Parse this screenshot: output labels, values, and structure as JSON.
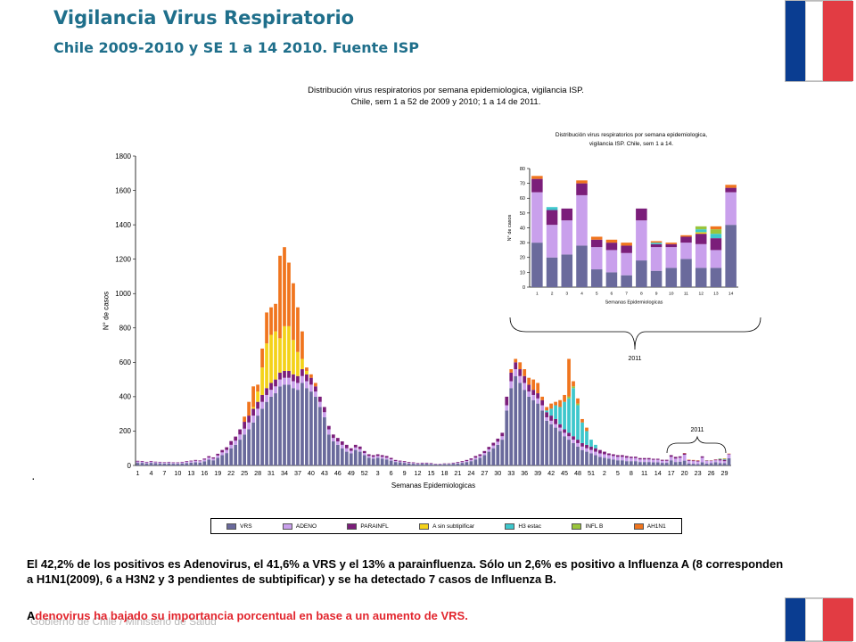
{
  "header": {
    "title": "Vigilancia Virus Respiratorio",
    "subtitle": "Chile 2009-2010  y SE 1 a 14 2010. Fuente ISP"
  },
  "colors": {
    "VRS": "#6a6a9c",
    "ADENO": "#c9a0ec",
    "PARAINFL": "#7b1e7a",
    "Asin": "#f4d21a",
    "H3": "#3ec7cc",
    "INFLB": "#9ac53c",
    "AH1N1": "#f0751e"
  },
  "chart_data": [
    {
      "type": "bar",
      "title": "Distribución virus respiratorios por semana epidemiologica, vigilancia ISP.",
      "title_line2": "Chile, sem 1 a 52 de 2009 y 2010; 1 a 14 de 2011.",
      "xlabel": "Semanas Epidemiologicas",
      "ylabel": "N° de casos",
      "ylim": [
        0,
        1800
      ],
      "yticks": [
        "0",
        "200",
        "400",
        "600",
        "800",
        "1000",
        "1200",
        "1400",
        "1600",
        "1800"
      ],
      "stacked": true,
      "series_names": [
        "VRS",
        "ADENO",
        "PARAINFL",
        "A sin subtipificar",
        "H3 estac",
        "INFL B",
        "AH1N1"
      ],
      "annotation": "2011",
      "note": "·",
      "values": [
        [
          15,
          8,
          4,
          0,
          0,
          0,
          0
        ],
        [
          15,
          7,
          4,
          0,
          0,
          0,
          0
        ],
        [
          12,
          6,
          3,
          0,
          0,
          0,
          0
        ],
        [
          15,
          7,
          4,
          0,
          0,
          0,
          0
        ],
        [
          13,
          6,
          3,
          0,
          0,
          0,
          0
        ],
        [
          12,
          6,
          3,
          0,
          0,
          0,
          0
        ],
        [
          11,
          5,
          3,
          0,
          0,
          0,
          0
        ],
        [
          12,
          6,
          3,
          0,
          0,
          0,
          0
        ],
        [
          10,
          5,
          3,
          0,
          0,
          0,
          0
        ],
        [
          10,
          5,
          3,
          0,
          0,
          0,
          0
        ],
        [
          12,
          6,
          3,
          0,
          0,
          0,
          0
        ],
        [
          14,
          7,
          4,
          0,
          0,
          0,
          0
        ],
        [
          16,
          8,
          4,
          0,
          0,
          0,
          0
        ],
        [
          18,
          9,
          5,
          0,
          0,
          0,
          0
        ],
        [
          17,
          8,
          4,
          0,
          0,
          0,
          0
        ],
        [
          24,
          10,
          6,
          0,
          0,
          0,
          0
        ],
        [
          34,
          12,
          8,
          0,
          0,
          0,
          0
        ],
        [
          30,
          10,
          7,
          0,
          0,
          0,
          0
        ],
        [
          44,
          14,
          10,
          0,
          0,
          0,
          0
        ],
        [
          60,
          16,
          14,
          0,
          0,
          0,
          0
        ],
        [
          72,
          18,
          16,
          0,
          0,
          0,
          0
        ],
        [
          100,
          20,
          22,
          0,
          0,
          0,
          0
        ],
        [
          120,
          24,
          24,
          0,
          0,
          0,
          0
        ],
        [
          150,
          30,
          30,
          0,
          0,
          0,
          0
        ],
        [
          180,
          34,
          40,
          0,
          0,
          0,
          30
        ],
        [
          210,
          40,
          40,
          0,
          0,
          0,
          80
        ],
        [
          250,
          40,
          40,
          10,
          0,
          0,
          120
        ],
        [
          290,
          40,
          40,
          60,
          0,
          0,
          40
        ],
        [
          330,
          40,
          40,
          160,
          0,
          0,
          110
        ],
        [
          370,
          40,
          40,
          260,
          0,
          0,
          180
        ],
        [
          400,
          40,
          40,
          280,
          0,
          0,
          160
        ],
        [
          420,
          40,
          40,
          280,
          0,
          0,
          160
        ],
        [
          460,
          40,
          40,
          200,
          0,
          0,
          480
        ],
        [
          470,
          40,
          40,
          260,
          0,
          0,
          460
        ],
        [
          470,
          40,
          40,
          260,
          0,
          0,
          370
        ],
        [
          450,
          40,
          40,
          200,
          0,
          0,
          330
        ],
        [
          440,
          40,
          40,
          140,
          0,
          0,
          260
        ],
        [
          480,
          40,
          40,
          60,
          0,
          0,
          160
        ],
        [
          450,
          40,
          40,
          20,
          0,
          0,
          20
        ],
        [
          430,
          40,
          40,
          0,
          0,
          0,
          20
        ],
        [
          400,
          30,
          30,
          0,
          0,
          0,
          20
        ],
        [
          340,
          30,
          30,
          0,
          0,
          0,
          0
        ],
        [
          280,
          30,
          30,
          0,
          0,
          0,
          0
        ],
        [
          180,
          30,
          20,
          0,
          0,
          0,
          0
        ],
        [
          140,
          20,
          20,
          0,
          0,
          0,
          0
        ],
        [
          120,
          20,
          20,
          0,
          0,
          0,
          0
        ],
        [
          100,
          20,
          20,
          0,
          0,
          0,
          0
        ],
        [
          80,
          20,
          20,
          0,
          0,
          0,
          0
        ],
        [
          70,
          15,
          15,
          0,
          0,
          0,
          0
        ],
        [
          90,
          15,
          15,
          0,
          0,
          0,
          0
        ],
        [
          80,
          15,
          15,
          0,
          0,
          0,
          0
        ],
        [
          60,
          12,
          12,
          0,
          0,
          0,
          0
        ],
        [
          45,
          10,
          10,
          0,
          0,
          0,
          0
        ],
        [
          40,
          10,
          10,
          0,
          0,
          0,
          0
        ],
        [
          45,
          10,
          10,
          0,
          0,
          0,
          0
        ],
        [
          40,
          10,
          10,
          0,
          0,
          0,
          0
        ],
        [
          35,
          10,
          10,
          0,
          0,
          0,
          0
        ],
        [
          28,
          8,
          8,
          0,
          0,
          0,
          0
        ],
        [
          20,
          6,
          6,
          0,
          0,
          0,
          0
        ],
        [
          18,
          5,
          5,
          0,
          0,
          0,
          0
        ],
        [
          15,
          5,
          5,
          0,
          0,
          0,
          0
        ],
        [
          12,
          4,
          4,
          0,
          0,
          0,
          0
        ],
        [
          10,
          4,
          4,
          0,
          0,
          0,
          0
        ],
        [
          8,
          3,
          3,
          0,
          0,
          0,
          0
        ],
        [
          10,
          3,
          3,
          0,
          0,
          0,
          0
        ],
        [
          10,
          3,
          3,
          0,
          0,
          0,
          0
        ],
        [
          8,
          3,
          3,
          0,
          0,
          0,
          0
        ],
        [
          6,
          2,
          2,
          0,
          0,
          0,
          0
        ],
        [
          6,
          2,
          2,
          0,
          0,
          0,
          0
        ],
        [
          8,
          2,
          2,
          0,
          0,
          0,
          0
        ],
        [
          8,
          2,
          2,
          0,
          0,
          0,
          0
        ],
        [
          10,
          3,
          3,
          0,
          0,
          0,
          0
        ],
        [
          12,
          4,
          4,
          0,
          0,
          0,
          0
        ],
        [
          15,
          5,
          5,
          0,
          0,
          0,
          0
        ],
        [
          20,
          6,
          6,
          0,
          0,
          0,
          0
        ],
        [
          25,
          8,
          8,
          0,
          0,
          0,
          0
        ],
        [
          35,
          10,
          10,
          0,
          0,
          0,
          0
        ],
        [
          45,
          10,
          10,
          0,
          0,
          0,
          0
        ],
        [
          60,
          12,
          12,
          0,
          0,
          0,
          0
        ],
        [
          80,
          14,
          14,
          0,
          0,
          0,
          0
        ],
        [
          100,
          16,
          16,
          0,
          0,
          0,
          0
        ],
        [
          120,
          18,
          18,
          0,
          0,
          0,
          0
        ],
        [
          150,
          20,
          20,
          0,
          0,
          0,
          0
        ],
        [
          320,
          30,
          50,
          0,
          0,
          0,
          0
        ],
        [
          450,
          40,
          50,
          0,
          0,
          0,
          20
        ],
        [
          520,
          40,
          40,
          0,
          0,
          0,
          20
        ],
        [
          480,
          40,
          40,
          0,
          0,
          0,
          40
        ],
        [
          440,
          40,
          40,
          0,
          0,
          0,
          40
        ],
        [
          400,
          30,
          40,
          0,
          0,
          0,
          40
        ],
        [
          380,
          30,
          30,
          0,
          0,
          0,
          60
        ],
        [
          360,
          30,
          30,
          0,
          0,
          0,
          60
        ],
        [
          320,
          30,
          30,
          0,
          0,
          0,
          20
        ],
        [
          260,
          20,
          30,
          0,
          10,
          0,
          20
        ],
        [
          240,
          20,
          30,
          0,
          40,
          0,
          30
        ],
        [
          220,
          20,
          30,
          0,
          80,
          0,
          20
        ],
        [
          200,
          20,
          20,
          0,
          100,
          0,
          40
        ],
        [
          170,
          20,
          20,
          0,
          160,
          0,
          40
        ],
        [
          150,
          20,
          20,
          0,
          200,
          10,
          220
        ],
        [
          130,
          20,
          20,
          0,
          280,
          10,
          30
        ],
        [
          110,
          20,
          20,
          0,
          200,
          10,
          30
        ],
        [
          90,
          20,
          20,
          0,
          120,
          0,
          20
        ],
        [
          80,
          20,
          20,
          0,
          80,
          0,
          20
        ],
        [
          70,
          20,
          20,
          0,
          40,
          0,
          0
        ],
        [
          60,
          20,
          20,
          0,
          20,
          0,
          0
        ],
        [
          50,
          20,
          20,
          0,
          0,
          0,
          0
        ],
        [
          45,
          20,
          15,
          0,
          0,
          0,
          0
        ],
        [
          40,
          20,
          10,
          0,
          0,
          0,
          0
        ],
        [
          35,
          20,
          10,
          0,
          0,
          0,
          0
        ],
        [
          30,
          20,
          10,
          0,
          0,
          0,
          0
        ],
        [
          30,
          20,
          10,
          0,
          0,
          0,
          0
        ],
        [
          25,
          20,
          10,
          0,
          0,
          0,
          0
        ],
        [
          25,
          18,
          8,
          0,
          0,
          0,
          0
        ],
        [
          25,
          18,
          8,
          0,
          0,
          0,
          0
        ],
        [
          20,
          15,
          8,
          0,
          0,
          0,
          0
        ],
        [
          20,
          15,
          8,
          0,
          0,
          0,
          0
        ],
        [
          20,
          15,
          8,
          0,
          0,
          0,
          0
        ],
        [
          18,
          15,
          6,
          0,
          0,
          0,
          0
        ],
        [
          18,
          15,
          6,
          0,
          0,
          0,
          0
        ],
        [
          15,
          12,
          6,
          0,
          0,
          0,
          0
        ],
        [
          15,
          12,
          6,
          0,
          0,
          0,
          0
        ],
        [
          30,
          20,
          10,
          0,
          0,
          0,
          0
        ],
        [
          20,
          20,
          10,
          0,
          0,
          0,
          0
        ],
        [
          22,
          23,
          8,
          0,
          0,
          0,
          0
        ],
        [
          28,
          34,
          8,
          0,
          0,
          0,
          2
        ],
        [
          12,
          15,
          5,
          0,
          0,
          0,
          2
        ],
        [
          10,
          15,
          5,
          0,
          0,
          0,
          2
        ],
        [
          8,
          15,
          5,
          0,
          0,
          0,
          2
        ],
        [
          18,
          27,
          8,
          0,
          0,
          0,
          0
        ],
        [
          11,
          16,
          2,
          0,
          1,
          0,
          1
        ],
        [
          13,
          14,
          2,
          0,
          0,
          0,
          1
        ],
        [
          19,
          11,
          4,
          0,
          0,
          0,
          1
        ],
        [
          13,
          16,
          7,
          1,
          2,
          2,
          0
        ],
        [
          13,
          12,
          8,
          0,
          3,
          3,
          2
        ],
        [
          42,
          22,
          3,
          0,
          0,
          0,
          2
        ]
      ]
    },
    {
      "type": "bar",
      "title": "Distribución virus respiratorios por semana epidemiologica,",
      "title_line2": "vigilancia ISP. Chile, sem 1 a 14.",
      "xlabel": "Semanas Epidemiologicas",
      "ylabel": "N° de casos",
      "ylim": [
        0,
        80
      ],
      "yticks": [
        "0",
        "10",
        "20",
        "30",
        "40",
        "50",
        "60",
        "70",
        "80"
      ],
      "categories": [
        "1",
        "2",
        "3",
        "4",
        "5",
        "6",
        "7",
        "8",
        "9",
        "10",
        "11",
        "12",
        "13",
        "14"
      ],
      "stacked": true,
      "annotation": "2011",
      "values": [
        [
          30,
          34,
          9,
          0,
          0,
          0,
          2
        ],
        [
          20,
          22,
          10,
          0,
          2,
          0,
          0
        ],
        [
          22,
          23,
          8,
          0,
          0,
          0,
          0
        ],
        [
          28,
          34,
          8,
          0,
          0,
          0,
          2
        ],
        [
          12,
          15,
          5,
          0,
          0,
          0,
          2
        ],
        [
          10,
          15,
          5,
          0,
          0,
          0,
          2
        ],
        [
          8,
          15,
          5,
          0,
          0,
          0,
          2
        ],
        [
          18,
          27,
          8,
          0,
          0,
          0,
          0
        ],
        [
          11,
          16,
          2,
          0,
          1,
          0,
          1
        ],
        [
          13,
          14,
          2,
          0,
          0,
          0,
          1
        ],
        [
          19,
          11,
          4,
          0,
          0,
          0,
          1
        ],
        [
          13,
          16,
          7,
          1,
          2,
          2,
          0
        ],
        [
          13,
          12,
          8,
          0,
          3,
          3,
          2
        ],
        [
          42,
          22,
          3,
          0,
          0,
          0,
          2
        ]
      ]
    }
  ],
  "legend": [
    "VRS",
    "ADENO",
    "PARAINFL",
    "A sin subtipificar",
    "H3 estac",
    "INFL B",
    "AH1N1"
  ],
  "text": {
    "paragraph": "El 42,2% de los positivos  es Adenovirus, el 41,6% a VRS y el 13% a parainfluenza. Sólo un 2,6%  es positivo a Influenza A (8 corresponden a H1N1(2009), 6 a  H3N2 y 3 pendientes de subtipificar) y se ha detectado 7 casos de Influenza B.",
    "conclusion_first": "A",
    "conclusion_rest": "denovirus ha bajado su importancia porcentual en base a un aumento de VRS.",
    "footer": "Gobierno de Chile / Ministerio de Salud"
  }
}
